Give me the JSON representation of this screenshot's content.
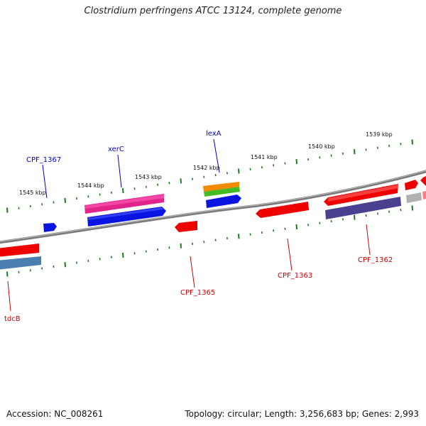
{
  "title": "Clostridium perfringens ATCC 13124, complete genome",
  "footer": {
    "accession": "Accession: NC_008261",
    "topology": "Topology: circular; Length: 3,256,683 bp; Genes: 2,993"
  },
  "colors": {
    "background": "#ffffff",
    "backbone": "#808080",
    "tick": "#1f7a1f",
    "label_blue": "#0000cc",
    "label_red": "#cc0000",
    "feature_red": "#ee0000",
    "feature_magenta": "#e0248c",
    "feature_blue": "#0a14e0",
    "feature_orange": "#f08a00",
    "feature_green": "#44bb22",
    "feature_steel": "#4a7fb0",
    "feature_navy": "#4a4090",
    "feature_gray": "#b0b0b0"
  },
  "scale_labels": [
    "1545 kbp",
    "1544 kbp",
    "1543 kbp",
    "1542 kbp",
    "1541 kbp",
    "1540 kbp",
    "1539 kbp"
  ],
  "gene_labels": {
    "cpf1367": "CPF_1367",
    "xerC": "xerC",
    "lexA": "lexA",
    "tdcB": "tdcB",
    "cpf1365": "CPF_1365",
    "cpf1363": "CPF_1363",
    "cpf1362": "CPF_1362"
  }
}
